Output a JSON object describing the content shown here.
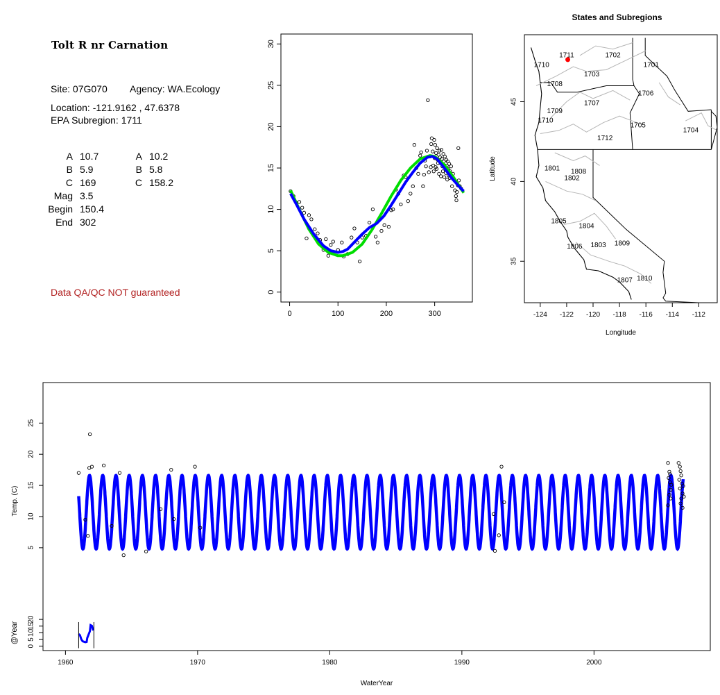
{
  "site": {
    "title": "Tolt R nr Carnation",
    "site_label": "Site: 07G070",
    "agency_label": "Agency: WA.Ecology",
    "location_label": "Location: -121.9162 , 47.6378",
    "subregion_label": "EPA Subregion: 1711",
    "qa_note": "Data QA/QC NOT guaranteed"
  },
  "params": {
    "col1": [
      {
        "label": "A",
        "value": "10.7"
      },
      {
        "label": "B",
        "value": "5.9"
      },
      {
        "label": "C",
        "value": "169"
      },
      {
        "label": "Mag",
        "value": "3.5"
      },
      {
        "label": "Begin",
        "value": "150.4"
      },
      {
        "label": "End",
        "value": "302"
      }
    ],
    "col2": [
      {
        "label": "A",
        "value": "10.2"
      },
      {
        "label": "B",
        "value": "5.8"
      },
      {
        "label": "C",
        "value": "158.2"
      }
    ]
  },
  "colors": {
    "green_fit": "#00dd00",
    "blue_fit": "#0000ff",
    "site_marker": "#ff0000",
    "qa_text": "#b22222"
  },
  "chart_data": [
    {
      "id": "seasonal",
      "type": "scatter",
      "title": "",
      "xlabel": "",
      "ylabel": "",
      "xlim": [
        -18,
        378
      ],
      "ylim": [
        -1.2,
        31.2
      ],
      "x_ticks": [
        0,
        100,
        200,
        300
      ],
      "y_ticks": [
        0,
        5,
        10,
        15,
        20,
        25,
        30
      ],
      "points": [
        [
          2,
          12.2
        ],
        [
          8,
          11.6
        ],
        [
          14,
          10.8
        ],
        [
          20,
          10.9
        ],
        [
          26,
          10.2
        ],
        [
          30,
          9.6
        ],
        [
          35,
          6.5
        ],
        [
          40,
          9.3
        ],
        [
          45,
          8.8
        ],
        [
          52,
          7.6
        ],
        [
          58,
          7.1
        ],
        [
          63,
          6.3
        ],
        [
          70,
          5.1
        ],
        [
          75,
          6.4
        ],
        [
          80,
          4.4
        ],
        [
          85,
          5.7
        ],
        [
          90,
          6.1
        ],
        [
          100,
          5.1
        ],
        [
          108,
          6.0
        ],
        [
          112,
          4.3
        ],
        [
          120,
          4.6
        ],
        [
          128,
          6.6
        ],
        [
          134,
          7.7
        ],
        [
          140,
          6.0
        ],
        [
          145,
          3.7
        ],
        [
          150,
          6.6
        ],
        [
          158,
          6.8
        ],
        [
          165,
          8.4
        ],
        [
          172,
          10.0
        ],
        [
          178,
          6.7
        ],
        [
          182,
          6.0
        ],
        [
          190,
          7.4
        ],
        [
          196,
          8.1
        ],
        [
          205,
          7.9
        ],
        [
          210,
          9.9
        ],
        [
          214,
          10.0
        ],
        [
          220,
          12.4
        ],
        [
          225,
          11.9
        ],
        [
          230,
          10.6
        ],
        [
          236,
          14.1
        ],
        [
          240,
          13.9
        ],
        [
          245,
          11.0
        ],
        [
          250,
          11.9
        ],
        [
          255,
          12.8
        ],
        [
          258,
          17.8
        ],
        [
          262,
          15.0
        ],
        [
          266,
          14.3
        ],
        [
          270,
          16.5
        ],
        [
          272,
          16.9
        ],
        [
          276,
          12.8
        ],
        [
          278,
          14.2
        ],
        [
          280,
          15.9
        ],
        [
          282,
          15.2
        ],
        [
          284,
          17.1
        ],
        [
          286,
          23.2
        ],
        [
          288,
          14.5
        ],
        [
          290,
          16.4
        ],
        [
          292,
          15.1
        ],
        [
          293,
          17.9
        ],
        [
          294,
          18.6
        ],
        [
          296,
          17.0
        ],
        [
          297,
          15.3
        ],
        [
          298,
          14.6
        ],
        [
          299,
          18.4
        ],
        [
          300,
          16.2
        ],
        [
          301,
          17.8
        ],
        [
          302,
          15.1
        ],
        [
          303,
          16.8
        ],
        [
          304,
          14.9
        ],
        [
          305,
          17.4
        ],
        [
          306,
          16.0
        ],
        [
          307,
          15.6
        ],
        [
          308,
          16.6
        ],
        [
          309,
          14.3
        ],
        [
          310,
          17.1
        ],
        [
          311,
          16.3
        ],
        [
          312,
          15.6
        ],
        [
          313,
          14.0
        ],
        [
          314,
          17.2
        ],
        [
          315,
          16.1
        ],
        [
          316,
          15.2
        ],
        [
          317,
          14.6
        ],
        [
          318,
          16.7
        ],
        [
          319,
          15.8
        ],
        [
          320,
          13.9
        ],
        [
          321,
          16.4
        ],
        [
          322,
          15.0
        ],
        [
          323,
          14.4
        ],
        [
          324,
          16.0
        ],
        [
          325,
          15.3
        ],
        [
          326,
          13.6
        ],
        [
          327,
          15.8
        ],
        [
          328,
          14.9
        ],
        [
          329,
          14.1
        ],
        [
          330,
          15.5
        ],
        [
          331,
          13.8
        ],
        [
          332,
          14.6
        ],
        [
          334,
          15.2
        ],
        [
          336,
          12.8
        ],
        [
          338,
          14.3
        ],
        [
          340,
          13.6
        ],
        [
          342,
          12.3
        ],
        [
          344,
          11.6
        ],
        [
          345,
          11.1
        ],
        [
          346,
          12.1
        ],
        [
          348,
          12.9
        ],
        [
          349,
          17.4
        ],
        [
          350,
          13.5
        ],
        [
          352,
          12.8
        ],
        [
          355,
          12.5
        ]
      ],
      "green_fit": [
        [
          2,
          12.3
        ],
        [
          20,
          10.0
        ],
        [
          40,
          7.6
        ],
        [
          60,
          5.8
        ],
        [
          80,
          4.8
        ],
        [
          100,
          4.4
        ],
        [
          110,
          4.4
        ],
        [
          130,
          4.8
        ],
        [
          150,
          5.8
        ],
        [
          170,
          7.5
        ],
        [
          190,
          9.5
        ],
        [
          210,
          11.6
        ],
        [
          230,
          13.5
        ],
        [
          250,
          15.0
        ],
        [
          270,
          16.1
        ],
        [
          290,
          16.5
        ],
        [
          300,
          16.4
        ],
        [
          320,
          15.4
        ],
        [
          340,
          13.8
        ],
        [
          360,
          12.0
        ]
      ],
      "blue_fit": [
        [
          2,
          11.9
        ],
        [
          15,
          10.5
        ],
        [
          30,
          8.8
        ],
        [
          50,
          7.0
        ],
        [
          70,
          5.6
        ],
        [
          85,
          5.0
        ],
        [
          100,
          4.8
        ],
        [
          110,
          4.9
        ],
        [
          120,
          5.2
        ],
        [
          135,
          6.1
        ],
        [
          150,
          7.0
        ],
        [
          165,
          7.8
        ],
        [
          180,
          8.3
        ],
        [
          195,
          9.2
        ],
        [
          210,
          10.5
        ],
        [
          225,
          11.9
        ],
        [
          240,
          13.3
        ],
        [
          255,
          14.5
        ],
        [
          270,
          15.6
        ],
        [
          285,
          16.3
        ],
        [
          295,
          16.4
        ],
        [
          305,
          16.1
        ],
        [
          320,
          15.0
        ],
        [
          335,
          13.8
        ],
        [
          350,
          12.8
        ],
        [
          360,
          12.2
        ]
      ]
    },
    {
      "id": "map",
      "type": "scatter",
      "title": "States and Subregions",
      "xlabel": "Longitude",
      "ylabel": "Latitude",
      "xlim": [
        -125.2,
        -110.6
      ],
      "ylim": [
        32.4,
        49.2
      ],
      "x_ticks": [
        -124,
        -122,
        -120,
        -118,
        -116,
        -114,
        -112
      ],
      "y_ticks": [
        35,
        40,
        45
      ],
      "site_marker": {
        "lon": -121.9162,
        "lat": 47.6378
      },
      "region_labels": [
        {
          "code": "1711",
          "lon": -122.0,
          "lat": 47.9
        },
        {
          "code": "1702",
          "lon": -118.5,
          "lat": 47.9
        },
        {
          "code": "1701",
          "lon": -115.6,
          "lat": 47.3
        },
        {
          "code": "1710",
          "lon": -123.9,
          "lat": 47.3
        },
        {
          "code": "1703",
          "lon": -120.1,
          "lat": 46.7
        },
        {
          "code": "1708",
          "lon": -122.9,
          "lat": 46.1
        },
        {
          "code": "1706",
          "lon": -116.0,
          "lat": 45.5
        },
        {
          "code": "1707",
          "lon": -120.1,
          "lat": 44.9
        },
        {
          "code": "1709",
          "lon": -122.9,
          "lat": 44.4
        },
        {
          "code": "1710",
          "lon": -123.6,
          "lat": 43.8
        },
        {
          "code": "1705",
          "lon": -116.6,
          "lat": 43.5
        },
        {
          "code": "1704",
          "lon": -112.6,
          "lat": 43.2
        },
        {
          "code": "1712",
          "lon": -119.1,
          "lat": 42.7
        },
        {
          "code": "1801",
          "lon": -123.1,
          "lat": 40.8
        },
        {
          "code": "1808",
          "lon": -121.1,
          "lat": 40.6
        },
        {
          "code": "1802",
          "lon": -121.6,
          "lat": 40.2
        },
        {
          "code": "1805",
          "lon": -122.6,
          "lat": 37.5
        },
        {
          "code": "1804",
          "lon": -120.5,
          "lat": 37.2
        },
        {
          "code": "1806",
          "lon": -121.4,
          "lat": 35.9
        },
        {
          "code": "1803",
          "lon": -119.6,
          "lat": 36.0
        },
        {
          "code": "1809",
          "lon": -117.8,
          "lat": 36.1
        },
        {
          "code": "1810",
          "lon": -116.1,
          "lat": 33.9
        },
        {
          "code": "1807",
          "lon": -117.6,
          "lat": 33.8
        }
      ]
    },
    {
      "id": "timeseries",
      "type": "line",
      "title": "",
      "xlabel": "WaterYear",
      "ylabel": "Temp. (C)",
      "ylabel2": "@Year",
      "xlim": [
        1958.3,
        2008.8
      ],
      "ylim": [
        -11.5,
        31.5
      ],
      "x_ticks": [
        1960,
        1970,
        1980,
        1990,
        2000
      ],
      "y_ticks": [
        5,
        10,
        15,
        20,
        25
      ],
      "y2_ticks": [
        0,
        5,
        10,
        15,
        20
      ],
      "fit": {
        "start": 1961.0,
        "end": 2006.75,
        "mean": 10.7,
        "amplitude": 5.9,
        "phase_day": 169
      },
      "outliers": [
        [
          1961.0,
          17.0
        ],
        [
          1961.5,
          9.5
        ],
        [
          1961.7,
          6.9
        ],
        [
          1961.85,
          23.2
        ],
        [
          1961.8,
          17.8
        ],
        [
          1962.0,
          18.0
        ],
        [
          1962.9,
          18.2
        ],
        [
          1963.5,
          8.5
        ],
        [
          1964.1,
          17.0
        ],
        [
          1964.4,
          3.8
        ],
        [
          1966.1,
          4.4
        ],
        [
          1967.2,
          11.2
        ],
        [
          1968.0,
          17.5
        ],
        [
          1968.2,
          9.6
        ],
        [
          1969.8,
          18.0
        ],
        [
          1970.2,
          8.2
        ],
        [
          1992.4,
          10.4
        ],
        [
          1992.5,
          4.5
        ],
        [
          1992.8,
          7.0
        ],
        [
          1993.0,
          18.0
        ],
        [
          1993.2,
          12.3
        ],
        [
          2005.6,
          18.6
        ],
        [
          2005.7,
          17.2
        ],
        [
          2005.65,
          16.2
        ],
        [
          2005.75,
          15.5
        ],
        [
          2005.8,
          14.3
        ],
        [
          2005.7,
          13.5
        ],
        [
          2005.8,
          12.9
        ],
        [
          2005.6,
          11.8
        ],
        [
          2005.75,
          16.8
        ],
        [
          2005.85,
          15.1
        ],
        [
          2006.4,
          18.6
        ],
        [
          2006.5,
          18.0
        ],
        [
          2006.55,
          17.3
        ],
        [
          2006.6,
          16.6
        ],
        [
          2006.45,
          15.9
        ],
        [
          2006.65,
          15.3
        ],
        [
          2006.5,
          14.5
        ],
        [
          2006.7,
          13.7
        ],
        [
          2006.6,
          12.9
        ],
        [
          2006.55,
          12.1
        ],
        [
          2006.7,
          11.4
        ],
        [
          2006.75,
          14.9
        ],
        [
          2006.8,
          13.2
        ]
      ],
      "year_curve": [
        [
          1961.0,
          12.5
        ],
        [
          1961.1,
          11.5
        ],
        [
          1961.2,
          8.5
        ],
        [
          1961.3,
          7.0
        ],
        [
          1961.5,
          6.3
        ],
        [
          1961.6,
          6.5
        ],
        [
          1961.65,
          9.5
        ],
        [
          1961.75,
          12.0
        ],
        [
          1961.85,
          14.5
        ],
        [
          1961.9,
          19.0
        ],
        [
          1962.0,
          18.5
        ],
        [
          1962.1,
          15.0
        ]
      ],
      "year_ticks": [
        1961.0,
        1962.15
      ]
    }
  ]
}
